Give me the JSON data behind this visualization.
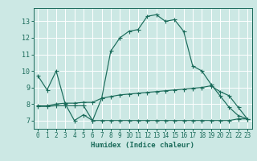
{
  "xlabel": "Humidex (Indice chaleur)",
  "ylabel": "",
  "bg_color": "#cce8e4",
  "grid_color": "#b0d8d2",
  "line_color": "#1a6b5a",
  "xlim": [
    -0.5,
    23.5
  ],
  "ylim": [
    6.5,
    13.8
  ],
  "yticks": [
    7,
    8,
    9,
    10,
    11,
    12,
    13
  ],
  "xticks": [
    0,
    1,
    2,
    3,
    4,
    5,
    6,
    7,
    8,
    9,
    10,
    11,
    12,
    13,
    14,
    15,
    16,
    17,
    18,
    19,
    20,
    21,
    22,
    23
  ],
  "line1_x": [
    0,
    1,
    2,
    3,
    4,
    5,
    6,
    7,
    8,
    9,
    10,
    11,
    12,
    13,
    14,
    15,
    16,
    17,
    18,
    19,
    20,
    21,
    22,
    23
  ],
  "line1_y": [
    9.7,
    8.85,
    10.0,
    8.0,
    7.0,
    7.35,
    7.0,
    8.35,
    11.2,
    12.0,
    12.4,
    12.5,
    13.3,
    13.4,
    13.0,
    13.1,
    12.4,
    10.3,
    10.0,
    9.2,
    8.5,
    7.8,
    7.3,
    7.1
  ],
  "line2_x": [
    0,
    1,
    2,
    3,
    4,
    5,
    6,
    7,
    8,
    9,
    10,
    11,
    12,
    13,
    14,
    15,
    16,
    17,
    18,
    19,
    20,
    21,
    22,
    23
  ],
  "line2_y": [
    7.9,
    7.9,
    8.0,
    8.05,
    8.05,
    8.1,
    8.1,
    8.35,
    8.45,
    8.55,
    8.6,
    8.65,
    8.7,
    8.75,
    8.8,
    8.85,
    8.9,
    8.95,
    9.0,
    9.1,
    8.75,
    8.5,
    7.8,
    7.1
  ],
  "line3_x": [
    0,
    1,
    2,
    3,
    4,
    5,
    6,
    7,
    8,
    9,
    10,
    11,
    12,
    13,
    14,
    15,
    16,
    17,
    18,
    19,
    20,
    21,
    22,
    23
  ],
  "line3_y": [
    7.85,
    7.85,
    7.9,
    7.9,
    7.9,
    7.9,
    7.0,
    7.0,
    7.0,
    7.0,
    7.0,
    7.0,
    7.0,
    7.0,
    7.0,
    7.0,
    7.0,
    7.0,
    7.0,
    7.0,
    7.0,
    7.0,
    7.1,
    7.1
  ]
}
